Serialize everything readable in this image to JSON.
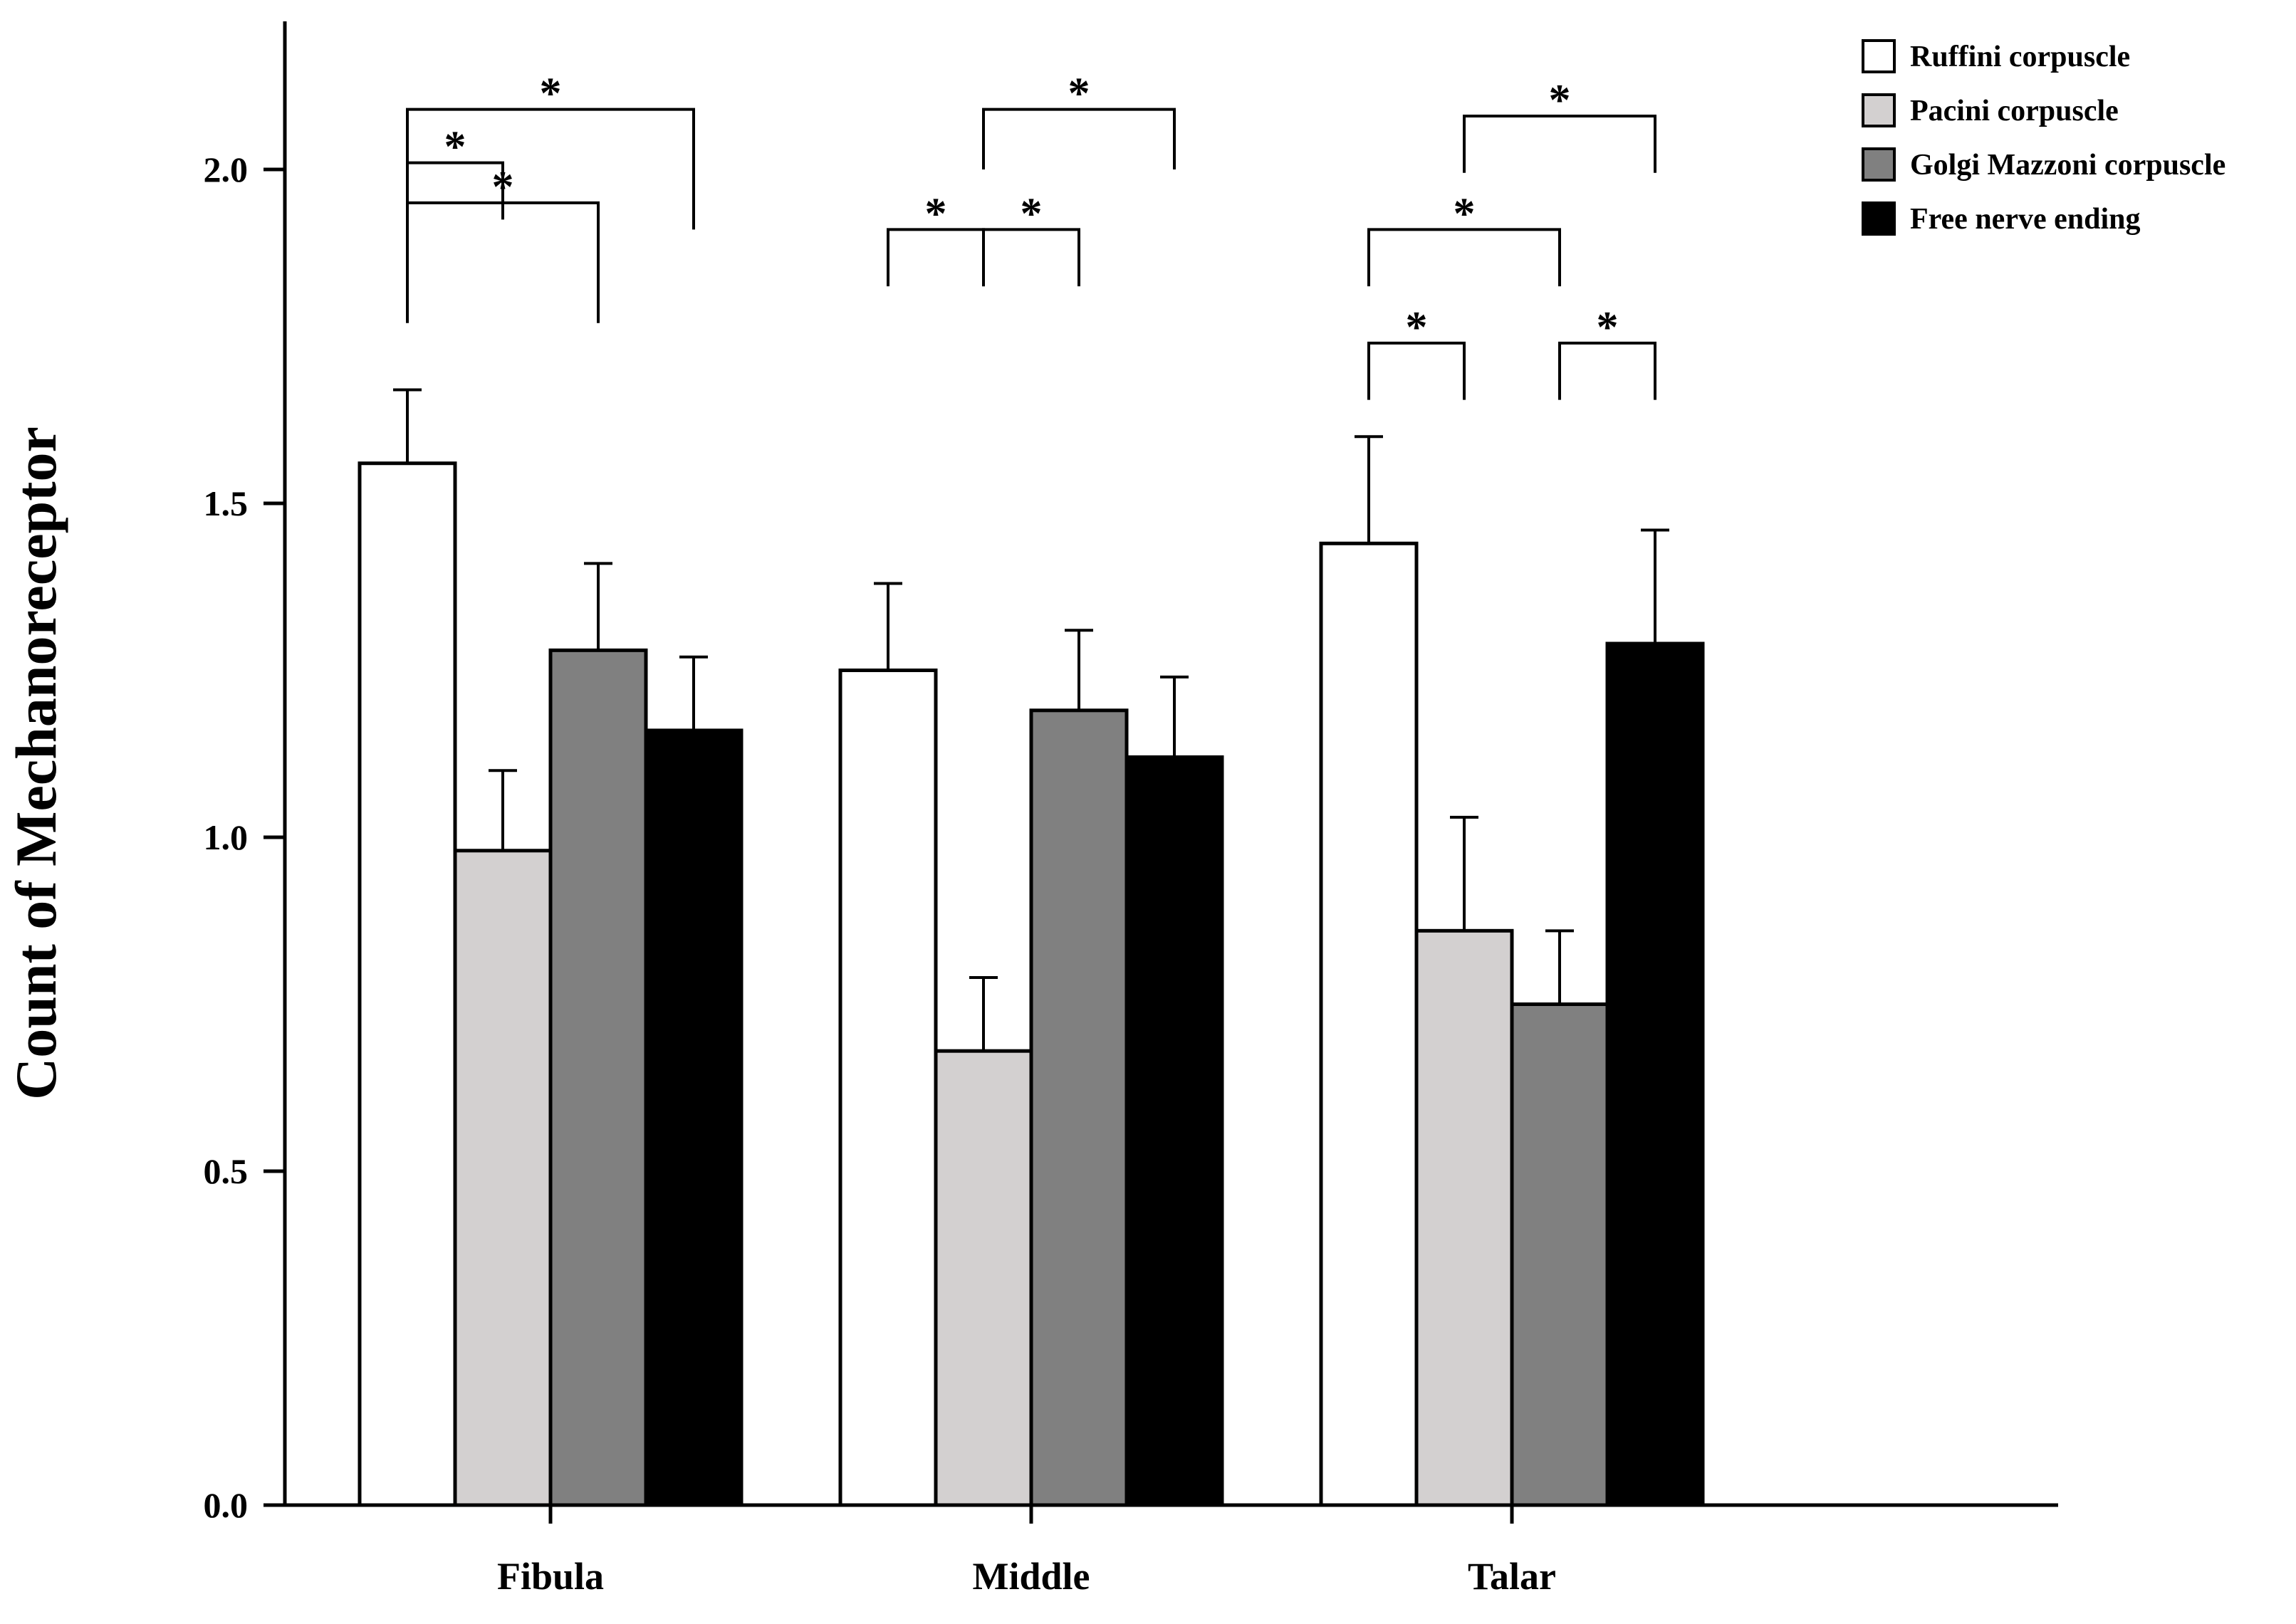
{
  "chart_data": {
    "type": "bar",
    "title": "",
    "xlabel": "",
    "ylabel": "Count of  Mechanoreceptor",
    "ylim": [
      0,
      2.2
    ],
    "yticks": [
      0.0,
      0.5,
      1.0,
      1.5,
      2.0
    ],
    "ytick_labels": [
      "0.0",
      "0.5",
      "1.0",
      "1.5",
      "2.0"
    ],
    "categories": [
      "Fibula",
      "Middle",
      "Talar"
    ],
    "legend_position": "top-right",
    "series": [
      {
        "name": "Ruffini corpuscle",
        "color": "#ffffff",
        "values": [
          1.56,
          1.25,
          1.44
        ],
        "errors": [
          0.11,
          0.13,
          0.16
        ]
      },
      {
        "name": "Pacini corpuscle",
        "color": "#d3d0d0",
        "values": [
          0.98,
          0.68,
          0.86
        ],
        "errors": [
          0.12,
          0.11,
          0.17
        ]
      },
      {
        "name": "Golgi Mazzoni corpuscle",
        "color": "#808080",
        "values": [
          1.28,
          1.19,
          0.75
        ],
        "errors": [
          0.13,
          0.12,
          0.11
        ]
      },
      {
        "name": "Free nerve ending",
        "color": "#000000",
        "values": [
          1.16,
          1.12,
          1.29
        ],
        "errors": [
          0.11,
          0.12,
          0.17
        ]
      }
    ],
    "significance": [
      {
        "category": 0,
        "from": 0,
        "to": 1,
        "label": "*",
        "level": 2.01,
        "drop": 0.085
      },
      {
        "category": 0,
        "from": 0,
        "to": 2,
        "label": "*",
        "level": 1.95,
        "drop": 0.18
      },
      {
        "category": 0,
        "from": 0,
        "to": 3,
        "label": "*",
        "level": 2.09,
        "drop": 0.18
      },
      {
        "category": 1,
        "from": 0,
        "to": 1,
        "label": "*",
        "level": 1.91,
        "drop": 0.085
      },
      {
        "category": 1,
        "from": 1,
        "to": 2,
        "label": "*",
        "level": 1.91,
        "drop": 0.085
      },
      {
        "category": 1,
        "from": 1,
        "to": 3,
        "label": "*",
        "level": 2.09,
        "drop": 0.09
      },
      {
        "category": 2,
        "from": 0,
        "to": 1,
        "label": "*",
        "level": 1.74,
        "drop": 0.085
      },
      {
        "category": 2,
        "from": 0,
        "to": 2,
        "label": "*",
        "level": 1.91,
        "drop": 0.085
      },
      {
        "category": 2,
        "from": 2,
        "to": 3,
        "label": "*",
        "level": 1.74,
        "drop": 0.085
      },
      {
        "category": 2,
        "from": 1,
        "to": 3,
        "label": "*",
        "level": 2.08,
        "drop": 0.085
      }
    ]
  }
}
